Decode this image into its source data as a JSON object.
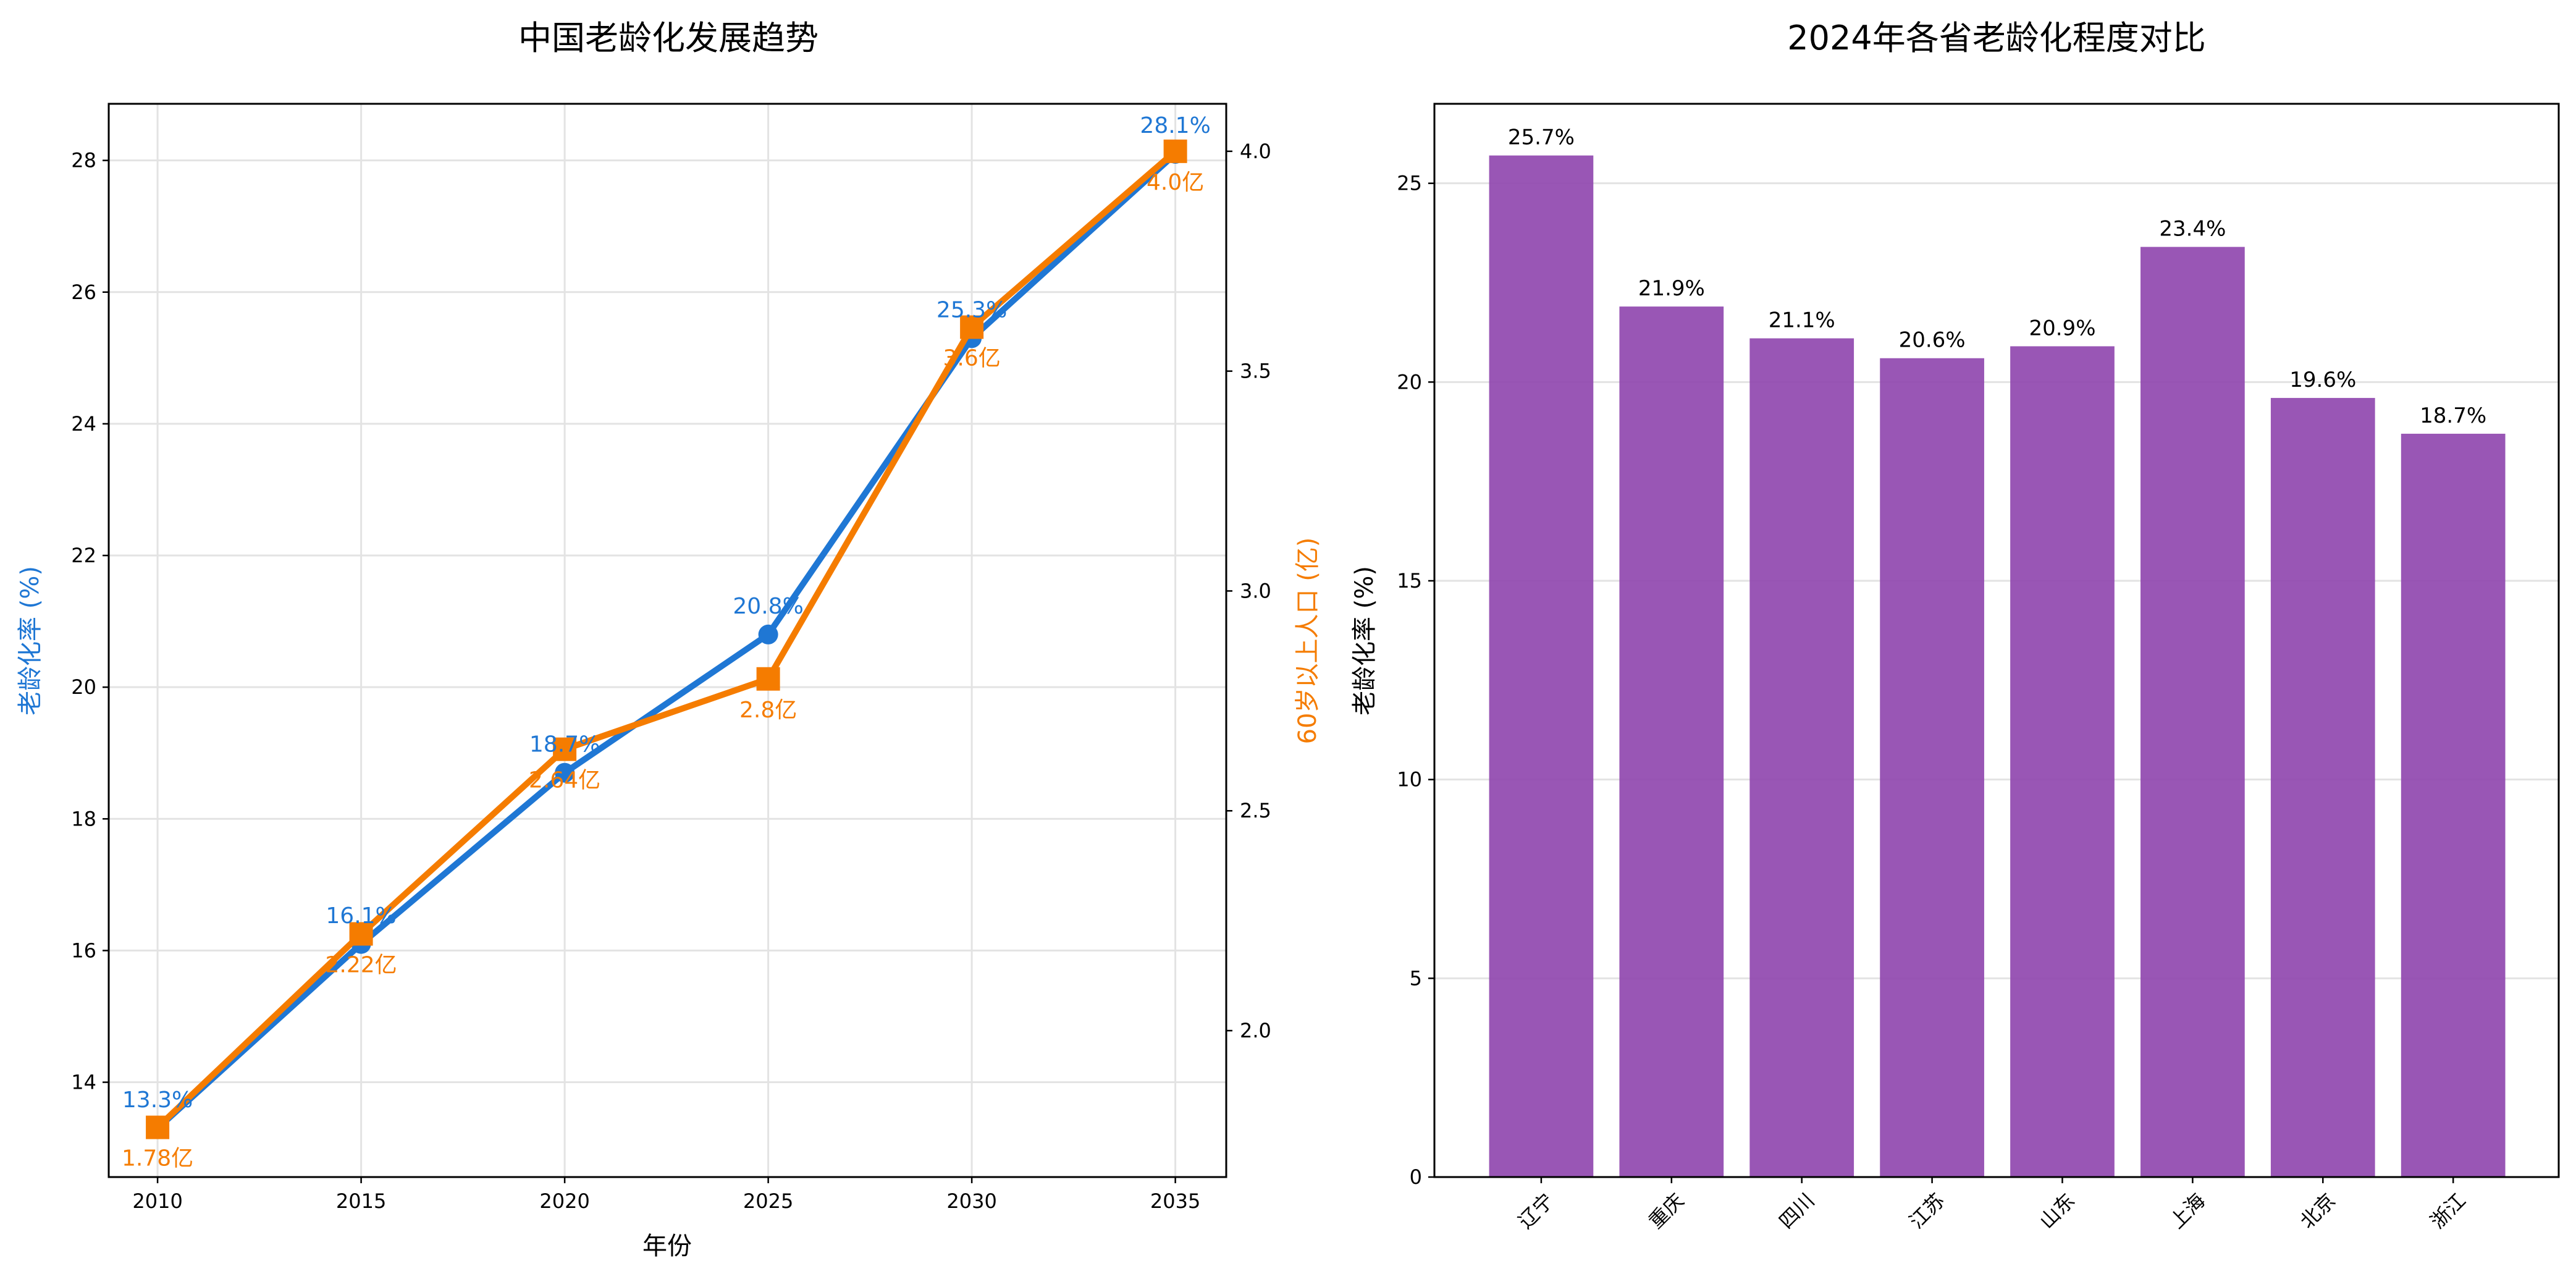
{
  "chart_data": [
    {
      "type": "line",
      "title": "中国老龄化发展趋势",
      "xlabel": "年份",
      "x": [
        2010,
        2015,
        2020,
        2025,
        2030,
        2035
      ],
      "xlim": [
        2008.8,
        2036.25
      ],
      "xticks": [
        2010,
        2015,
        2020,
        2025,
        2030,
        2035
      ],
      "grid": true,
      "series": [
        {
          "name": "老龄化率",
          "axis": "left",
          "ylabel": "老龄化率 (%)",
          "color": "#1f77d4",
          "marker": "circle",
          "values": [
            13.3,
            16.1,
            18.7,
            20.8,
            25.3,
            28.1
          ],
          "labels": [
            "13.3%",
            "16.1%",
            "18.7%",
            "20.8%",
            "25.3%",
            "28.1%"
          ],
          "ylim": [
            12.56,
            28.86
          ],
          "yticks": [
            14,
            16,
            18,
            20,
            22,
            24,
            26,
            28
          ]
        },
        {
          "name": "60岁以上人口",
          "axis": "right",
          "ylabel": "60岁以上人口 (亿)",
          "color": "#f57c00",
          "marker": "square",
          "values": [
            1.78,
            2.22,
            2.64,
            2.8,
            3.6,
            4.0
          ],
          "labels": [
            "1.78亿",
            "2.22亿",
            "2.64亿",
            "2.8亿",
            "3.6亿",
            "4.0亿"
          ],
          "ylim": [
            1.667,
            4.108
          ],
          "yticks": [
            "2.0",
            "2.5",
            "3.0",
            "3.5",
            "4.0"
          ]
        }
      ]
    },
    {
      "type": "bar",
      "title": "2024年各省老龄化程度对比",
      "ylabel": "老龄化率 (%)",
      "categories": [
        "辽宁",
        "重庆",
        "四川",
        "江苏",
        "山东",
        "上海",
        "北京",
        "浙江"
      ],
      "values": [
        25.7,
        21.9,
        21.1,
        20.6,
        20.9,
        23.4,
        19.6,
        18.7
      ],
      "labels": [
        "25.7%",
        "21.9%",
        "21.1%",
        "20.6%",
        "20.9%",
        "23.4%",
        "19.6%",
        "18.7%"
      ],
      "ylim": [
        0,
        27
      ],
      "yticks": [
        0,
        5,
        10,
        15,
        20,
        25
      ],
      "color": "#8E44AD",
      "grid": "y"
    }
  ]
}
